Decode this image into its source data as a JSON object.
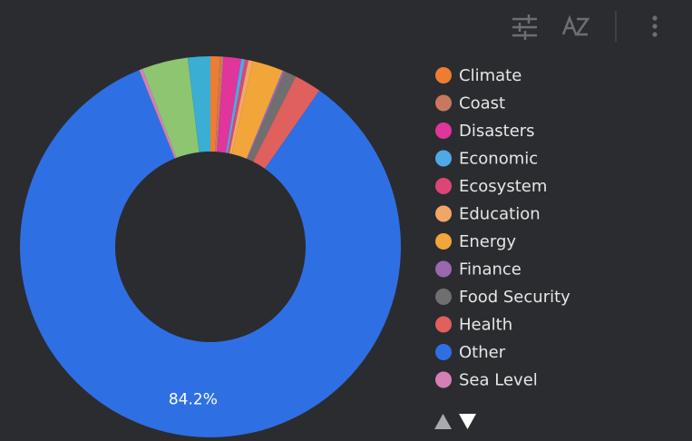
{
  "chart_data": {
    "type": "donut",
    "categories": [
      "Climate",
      "Coast",
      "Disasters",
      "Economic",
      "Ecosystem",
      "Education",
      "Energy",
      "Finance",
      "Food Security",
      "Health",
      "Other",
      "Sea Level",
      null,
      null
    ],
    "values": [
      0.8,
      0.3,
      1.5,
      0.3,
      0.3,
      0.4,
      2.6,
      0.2,
      1.0,
      2.3,
      84.2,
      0.3,
      3.9,
      1.9
    ],
    "value_labels": [
      null,
      null,
      null,
      null,
      null,
      null,
      null,
      null,
      null,
      null,
      "84.2%",
      null,
      null,
      null
    ],
    "colors": [
      "#ee7d31",
      "#c9785f",
      "#e0359b",
      "#4fa9e6",
      "#dc4677",
      "#f0a766",
      "#f2a63a",
      "#9a67b0",
      "#6f6f6f",
      "#e0605e",
      "#2f6fe4",
      "#d580b4",
      "#8dc571",
      "#3aaed3"
    ]
  }
}
